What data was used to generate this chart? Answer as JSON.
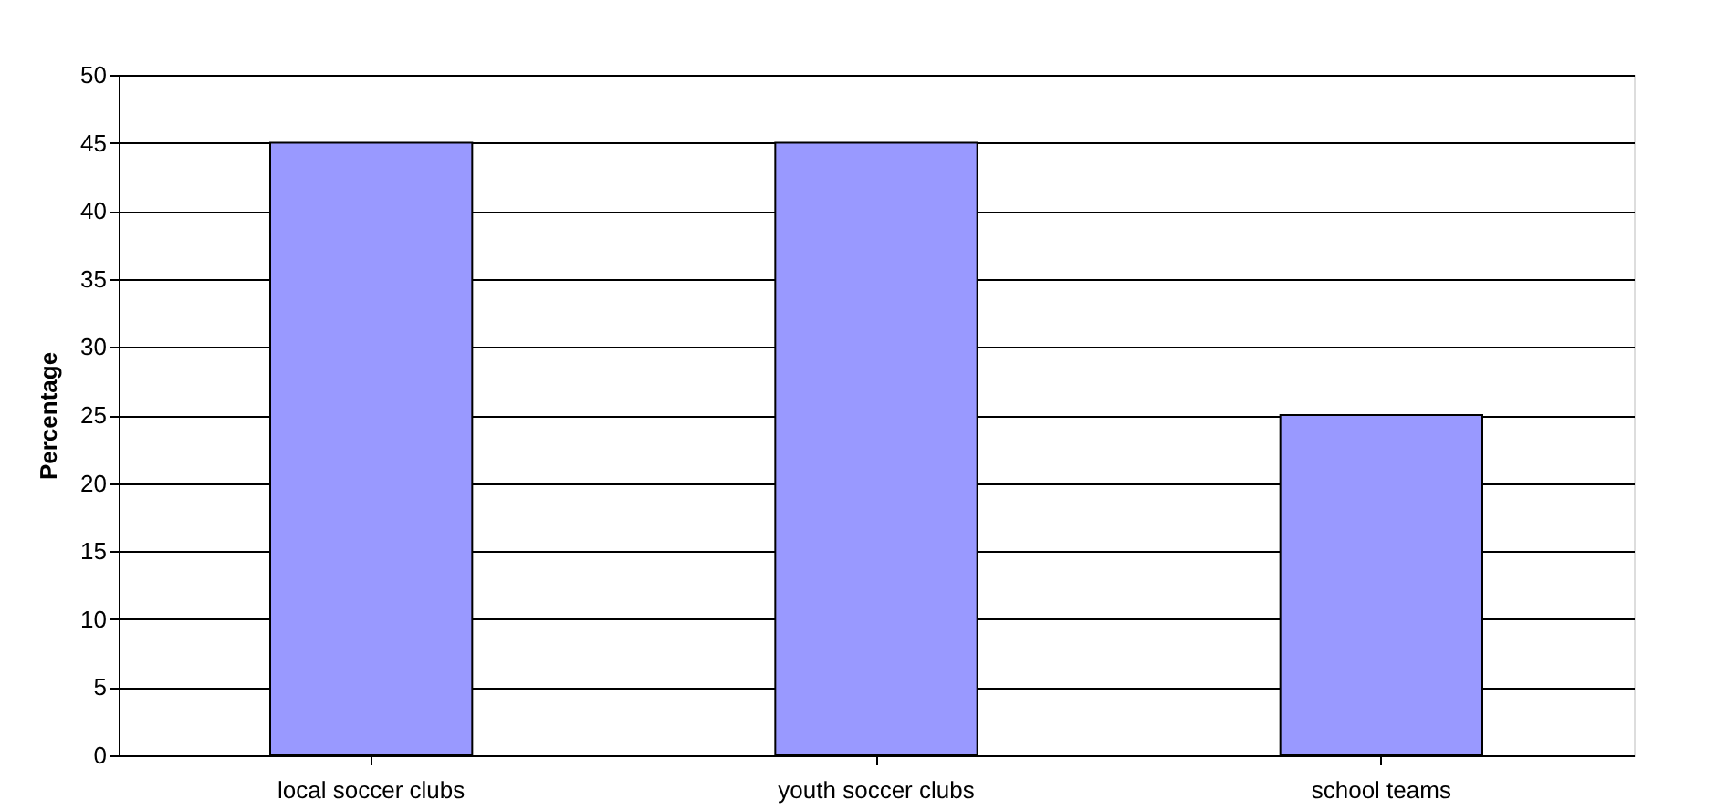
{
  "chart_data": {
    "type": "bar",
    "ylabel": "Percentage",
    "categories": [
      "local soccer clubs",
      "youth soccer clubs",
      "school teams"
    ],
    "values": [
      45,
      45,
      25
    ],
    "color": "#9999ff",
    "ylim": [
      0,
      50
    ],
    "yticks": [
      0,
      5,
      10,
      15,
      20,
      25,
      30,
      35,
      40,
      45,
      50
    ],
    "grid": "y"
  }
}
